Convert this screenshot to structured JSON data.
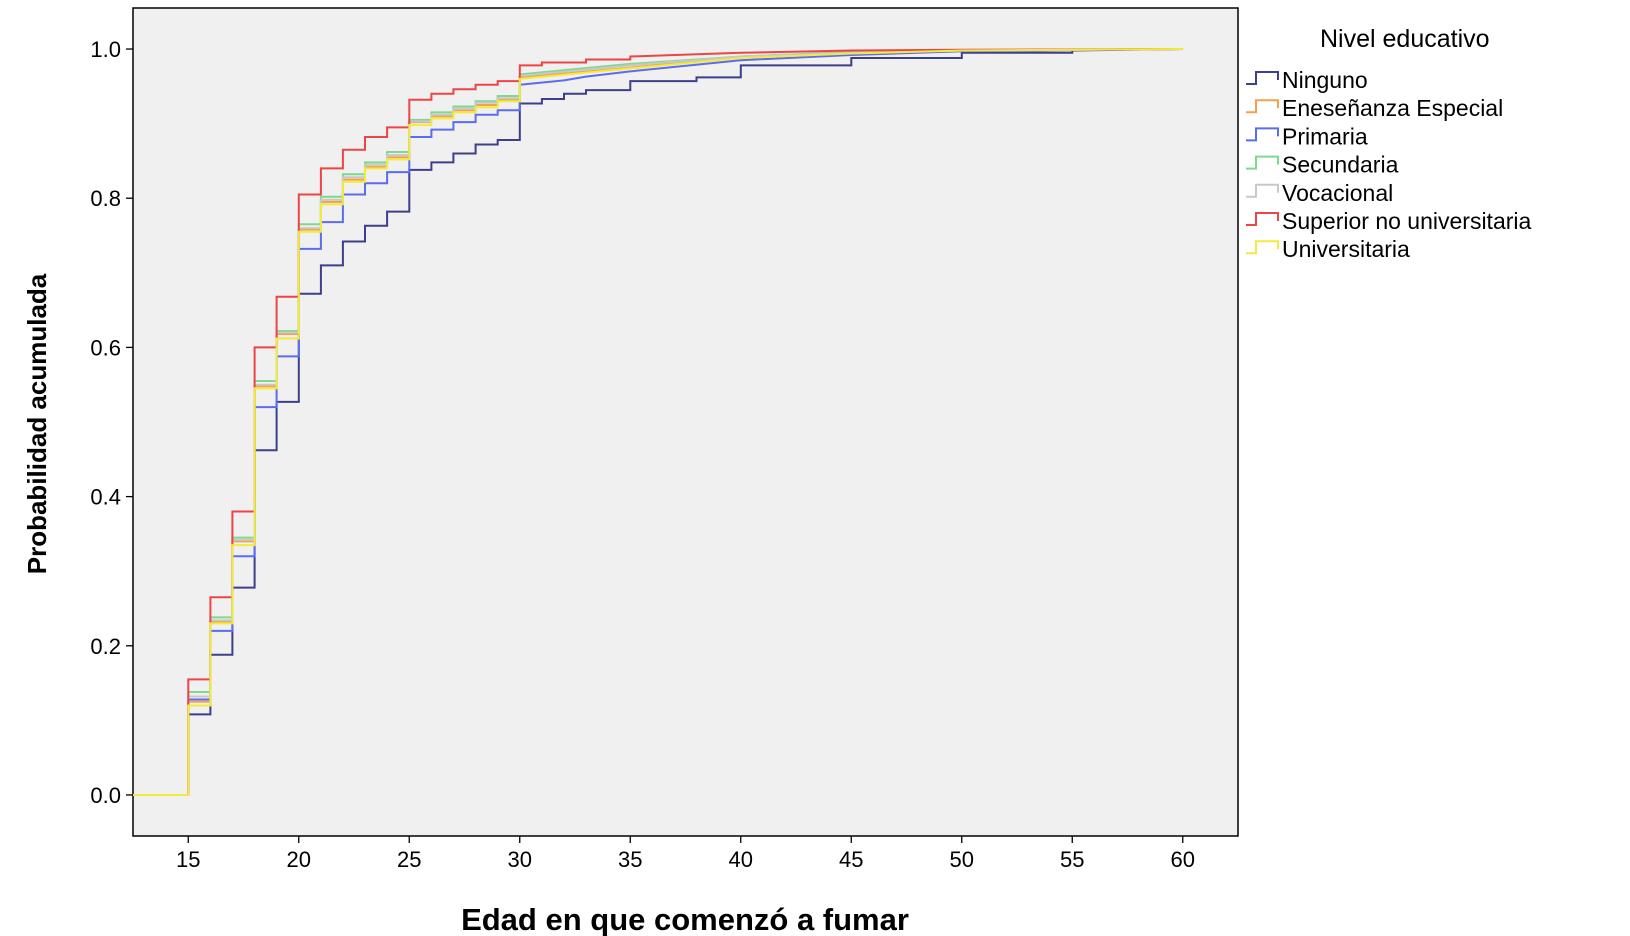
{
  "chart_data": {
    "type": "line",
    "step": true,
    "xlabel": "Edad en que comenzó a fumar",
    "ylabel": "Probabilidad acumulada",
    "xlim": [
      12.5,
      62.5
    ],
    "ylim": [
      -0.055,
      1.055
    ],
    "xticks": [
      15,
      20,
      25,
      30,
      35,
      40,
      45,
      50,
      55,
      60
    ],
    "yticks": [
      0.0,
      0.2,
      0.4,
      0.6,
      0.8,
      1.0
    ],
    "xtick_labels": [
      "15",
      "20",
      "25",
      "30",
      "35",
      "40",
      "45",
      "50",
      "55",
      "60"
    ],
    "ytick_labels": [
      "0.0",
      "0.2",
      "0.4",
      "0.6",
      "0.8",
      "1.0"
    ],
    "plot_background": "#f0f0f0",
    "grid": false,
    "legend_title": "Nivel educativo",
    "legend_position": "right",
    "series": [
      {
        "name": "Ninguno",
        "color": "#3b3f8c",
        "points": [
          [
            12.5,
            0
          ],
          [
            15,
            0
          ],
          [
            15,
            0.108
          ],
          [
            16,
            0.108
          ],
          [
            16,
            0.188
          ],
          [
            17,
            0.188
          ],
          [
            17,
            0.278
          ],
          [
            18,
            0.278
          ],
          [
            18,
            0.462
          ],
          [
            19,
            0.462
          ],
          [
            19,
            0.527
          ],
          [
            20,
            0.527
          ],
          [
            20,
            0.672
          ],
          [
            21,
            0.672
          ],
          [
            21,
            0.71
          ],
          [
            22,
            0.71
          ],
          [
            22,
            0.742
          ],
          [
            23,
            0.742
          ],
          [
            23,
            0.763
          ],
          [
            24,
            0.763
          ],
          [
            24,
            0.782
          ],
          [
            25,
            0.782
          ],
          [
            25,
            0.838
          ],
          [
            26,
            0.838
          ],
          [
            26,
            0.848
          ],
          [
            27,
            0.848
          ],
          [
            27,
            0.86
          ],
          [
            28,
            0.86
          ],
          [
            28,
            0.872
          ],
          [
            29,
            0.872
          ],
          [
            29,
            0.878
          ],
          [
            30,
            0.878
          ],
          [
            30,
            0.927
          ],
          [
            31,
            0.927
          ],
          [
            31,
            0.933
          ],
          [
            32,
            0.933
          ],
          [
            32,
            0.94
          ],
          [
            33,
            0.94
          ],
          [
            33,
            0.945
          ],
          [
            35,
            0.945
          ],
          [
            35,
            0.957
          ],
          [
            38,
            0.957
          ],
          [
            38,
            0.962
          ],
          [
            40,
            0.962
          ],
          [
            40,
            0.978
          ],
          [
            45,
            0.978
          ],
          [
            45,
            0.988
          ],
          [
            50,
            0.988
          ],
          [
            50,
            0.995
          ],
          [
            55,
            0.995
          ],
          [
            55,
            0.998
          ],
          [
            60,
            1.0
          ]
        ]
      },
      {
        "name": "Eneseñanza Especial",
        "color": "#f5a04a",
        "points": [
          [
            12.5,
            0
          ],
          [
            15,
            0
          ],
          [
            15,
            0.125
          ],
          [
            16,
            0.125
          ],
          [
            16,
            0.232
          ],
          [
            17,
            0.232
          ],
          [
            17,
            0.34
          ],
          [
            18,
            0.34
          ],
          [
            18,
            0.548
          ],
          [
            19,
            0.548
          ],
          [
            19,
            0.618
          ],
          [
            20,
            0.618
          ],
          [
            20,
            0.758
          ],
          [
            21,
            0.758
          ],
          [
            21,
            0.795
          ],
          [
            22,
            0.795
          ],
          [
            22,
            0.825
          ],
          [
            23,
            0.825
          ],
          [
            23,
            0.842
          ],
          [
            24,
            0.842
          ],
          [
            24,
            0.855
          ],
          [
            25,
            0.855
          ],
          [
            25,
            0.902
          ],
          [
            26,
            0.902
          ],
          [
            26,
            0.91
          ],
          [
            27,
            0.91
          ],
          [
            27,
            0.918
          ],
          [
            28,
            0.918
          ],
          [
            28,
            0.925
          ],
          [
            29,
            0.925
          ],
          [
            29,
            0.932
          ],
          [
            30,
            0.932
          ],
          [
            30,
            0.962
          ],
          [
            35,
            0.975
          ],
          [
            40,
            0.99
          ],
          [
            45,
            0.995
          ],
          [
            50,
            0.998
          ],
          [
            60,
            1.0
          ]
        ]
      },
      {
        "name": "Primaria",
        "color": "#5a6cf0",
        "points": [
          [
            12.5,
            0
          ],
          [
            15,
            0
          ],
          [
            15,
            0.128
          ],
          [
            16,
            0.128
          ],
          [
            16,
            0.22
          ],
          [
            17,
            0.22
          ],
          [
            17,
            0.32
          ],
          [
            18,
            0.32
          ],
          [
            18,
            0.52
          ],
          [
            19,
            0.52
          ],
          [
            19,
            0.588
          ],
          [
            20,
            0.588
          ],
          [
            20,
            0.732
          ],
          [
            21,
            0.732
          ],
          [
            21,
            0.768
          ],
          [
            22,
            0.768
          ],
          [
            22,
            0.805
          ],
          [
            23,
            0.805
          ],
          [
            23,
            0.82
          ],
          [
            24,
            0.82
          ],
          [
            24,
            0.835
          ],
          [
            25,
            0.835
          ],
          [
            25,
            0.882
          ],
          [
            26,
            0.882
          ],
          [
            26,
            0.892
          ],
          [
            27,
            0.892
          ],
          [
            27,
            0.902
          ],
          [
            28,
            0.902
          ],
          [
            28,
            0.912
          ],
          [
            29,
            0.912
          ],
          [
            29,
            0.918
          ],
          [
            30,
            0.918
          ],
          [
            30,
            0.952
          ],
          [
            32,
            0.958
          ],
          [
            33,
            0.963
          ],
          [
            35,
            0.97
          ],
          [
            40,
            0.985
          ],
          [
            45,
            0.992
          ],
          [
            50,
            0.997
          ],
          [
            60,
            1.0
          ]
        ]
      },
      {
        "name": "Secundaria",
        "color": "#7ed98f",
        "points": [
          [
            12.5,
            0
          ],
          [
            15,
            0
          ],
          [
            15,
            0.138
          ],
          [
            16,
            0.138
          ],
          [
            16,
            0.238
          ],
          [
            17,
            0.238
          ],
          [
            17,
            0.345
          ],
          [
            18,
            0.345
          ],
          [
            18,
            0.555
          ],
          [
            19,
            0.555
          ],
          [
            19,
            0.622
          ],
          [
            20,
            0.622
          ],
          [
            20,
            0.765
          ],
          [
            21,
            0.765
          ],
          [
            21,
            0.802
          ],
          [
            22,
            0.802
          ],
          [
            22,
            0.832
          ],
          [
            23,
            0.832
          ],
          [
            23,
            0.848
          ],
          [
            24,
            0.848
          ],
          [
            24,
            0.862
          ],
          [
            25,
            0.862
          ],
          [
            25,
            0.905
          ],
          [
            26,
            0.905
          ],
          [
            26,
            0.915
          ],
          [
            27,
            0.915
          ],
          [
            27,
            0.923
          ],
          [
            28,
            0.923
          ],
          [
            28,
            0.93
          ],
          [
            29,
            0.93
          ],
          [
            29,
            0.937
          ],
          [
            30,
            0.937
          ],
          [
            30,
            0.966
          ],
          [
            35,
            0.98
          ],
          [
            40,
            0.99
          ],
          [
            45,
            0.996
          ],
          [
            50,
            0.998
          ],
          [
            60,
            1.0
          ]
        ]
      },
      {
        "name": "Vocacional",
        "color": "#c8c8c8",
        "points": [
          [
            12.5,
            0
          ],
          [
            15,
            0
          ],
          [
            15,
            0.132
          ],
          [
            16,
            0.132
          ],
          [
            16,
            0.234
          ],
          [
            17,
            0.234
          ],
          [
            17,
            0.342
          ],
          [
            18,
            0.342
          ],
          [
            18,
            0.55
          ],
          [
            19,
            0.55
          ],
          [
            19,
            0.62
          ],
          [
            20,
            0.62
          ],
          [
            20,
            0.76
          ],
          [
            21,
            0.76
          ],
          [
            21,
            0.798
          ],
          [
            22,
            0.798
          ],
          [
            22,
            0.828
          ],
          [
            23,
            0.828
          ],
          [
            23,
            0.845
          ],
          [
            24,
            0.845
          ],
          [
            24,
            0.858
          ],
          [
            25,
            0.858
          ],
          [
            25,
            0.903
          ],
          [
            26,
            0.903
          ],
          [
            26,
            0.912
          ],
          [
            27,
            0.912
          ],
          [
            27,
            0.92
          ],
          [
            28,
            0.92
          ],
          [
            28,
            0.928
          ],
          [
            29,
            0.928
          ],
          [
            29,
            0.934
          ],
          [
            30,
            0.934
          ],
          [
            30,
            0.964
          ],
          [
            35,
            0.978
          ],
          [
            40,
            0.99
          ],
          [
            45,
            0.995
          ],
          [
            50,
            0.998
          ],
          [
            60,
            1.0
          ]
        ]
      },
      {
        "name": "Superior no universitaria",
        "color": "#ee4444",
        "points": [
          [
            12.5,
            0
          ],
          [
            15,
            0
          ],
          [
            15,
            0.155
          ],
          [
            16,
            0.155
          ],
          [
            16,
            0.265
          ],
          [
            17,
            0.265
          ],
          [
            17,
            0.38
          ],
          [
            18,
            0.38
          ],
          [
            18,
            0.6
          ],
          [
            19,
            0.6
          ],
          [
            19,
            0.668
          ],
          [
            20,
            0.668
          ],
          [
            20,
            0.805
          ],
          [
            21,
            0.805
          ],
          [
            21,
            0.84
          ],
          [
            22,
            0.84
          ],
          [
            22,
            0.865
          ],
          [
            23,
            0.865
          ],
          [
            23,
            0.882
          ],
          [
            24,
            0.882
          ],
          [
            24,
            0.895
          ],
          [
            25,
            0.895
          ],
          [
            25,
            0.932
          ],
          [
            26,
            0.932
          ],
          [
            26,
            0.94
          ],
          [
            27,
            0.94
          ],
          [
            27,
            0.946
          ],
          [
            28,
            0.946
          ],
          [
            28,
            0.952
          ],
          [
            29,
            0.952
          ],
          [
            29,
            0.957
          ],
          [
            30,
            0.957
          ],
          [
            30,
            0.978
          ],
          [
            31,
            0.978
          ],
          [
            31,
            0.982
          ],
          [
            33,
            0.982
          ],
          [
            33,
            0.986
          ],
          [
            35,
            0.986
          ],
          [
            35,
            0.99
          ],
          [
            40,
            0.995
          ],
          [
            45,
            0.998
          ],
          [
            50,
            0.999
          ],
          [
            60,
            1.0
          ]
        ]
      },
      {
        "name": "Universitaria",
        "color": "#f2ea3c",
        "points": [
          [
            12.5,
            0
          ],
          [
            15,
            0
          ],
          [
            15,
            0.12
          ],
          [
            16,
            0.12
          ],
          [
            16,
            0.23
          ],
          [
            17,
            0.23
          ],
          [
            17,
            0.335
          ],
          [
            18,
            0.335
          ],
          [
            18,
            0.545
          ],
          [
            19,
            0.545
          ],
          [
            19,
            0.612
          ],
          [
            20,
            0.612
          ],
          [
            20,
            0.755
          ],
          [
            21,
            0.755
          ],
          [
            21,
            0.792
          ],
          [
            22,
            0.792
          ],
          [
            22,
            0.822
          ],
          [
            23,
            0.822
          ],
          [
            23,
            0.84
          ],
          [
            24,
            0.84
          ],
          [
            24,
            0.852
          ],
          [
            25,
            0.852
          ],
          [
            25,
            0.898
          ],
          [
            26,
            0.898
          ],
          [
            26,
            0.907
          ],
          [
            27,
            0.907
          ],
          [
            27,
            0.915
          ],
          [
            28,
            0.915
          ],
          [
            28,
            0.922
          ],
          [
            29,
            0.922
          ],
          [
            29,
            0.93
          ],
          [
            30,
            0.93
          ],
          [
            30,
            0.96
          ],
          [
            35,
            0.974
          ],
          [
            40,
            0.988
          ],
          [
            45,
            0.994
          ],
          [
            50,
            0.998
          ],
          [
            60,
            1.0
          ]
        ]
      }
    ]
  }
}
